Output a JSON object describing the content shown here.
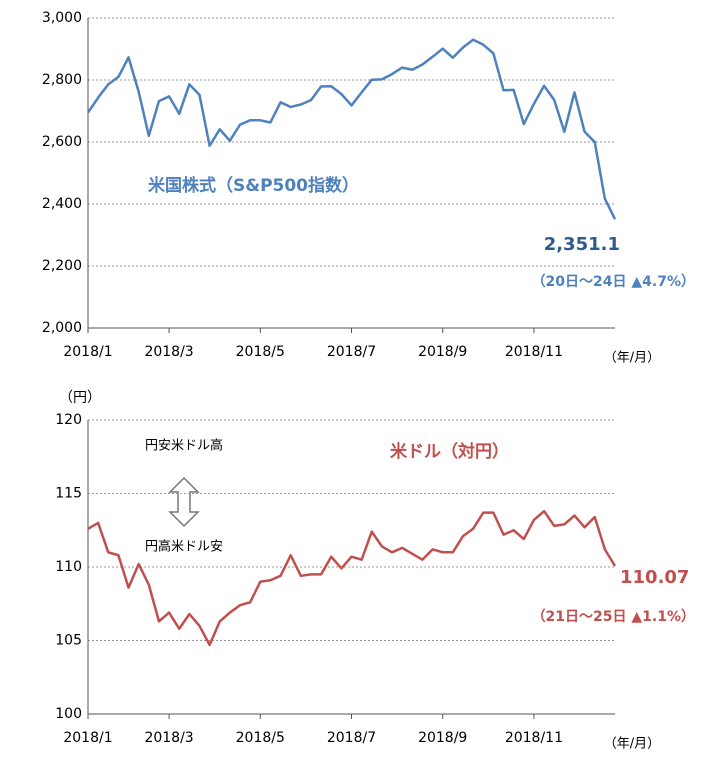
{
  "chart_data": [
    {
      "type": "line",
      "title": "米国株式（S&P500指数）",
      "categories": [
        "2018/1",
        null,
        null,
        null,
        null,
        null,
        null,
        null,
        "2018/3",
        null,
        null,
        null,
        null,
        null,
        null,
        null,
        null,
        "2018/5",
        null,
        null,
        null,
        null,
        null,
        null,
        null,
        null,
        "2018/7",
        null,
        null,
        null,
        null,
        null,
        null,
        null,
        null,
        "2018/9",
        null,
        null,
        null,
        null,
        null,
        null,
        null,
        null,
        "2018/11",
        null,
        null,
        null,
        null,
        null,
        null,
        null,
        null
      ],
      "series": [
        {
          "name": "S&P500",
          "color": "#4f81bd",
          "values": [
            2695,
            2743,
            2786,
            2810,
            2873,
            2762,
            2620,
            2732,
            2747,
            2691,
            2786,
            2752,
            2588,
            2641,
            2604,
            2656,
            2670,
            2670,
            2663,
            2728,
            2713,
            2721,
            2735,
            2779,
            2780,
            2755,
            2718,
            2760,
            2801,
            2802,
            2819,
            2840,
            2833,
            2850,
            2875,
            2901,
            2872,
            2905,
            2930,
            2914,
            2886,
            2767,
            2768,
            2658,
            2723,
            2781,
            2736,
            2633,
            2760,
            2633,
            2600,
            2417,
            2351.1
          ]
        }
      ],
      "ylim": [
        2000,
        3000
      ],
      "yticks": [
        {
          "value": 2000,
          "label": "2,000"
        },
        {
          "value": 2200,
          "label": "2,200"
        },
        {
          "value": 2400,
          "label": "2,400"
        },
        {
          "value": 2600,
          "label": "2,600"
        },
        {
          "value": 2800,
          "label": "2,800"
        },
        {
          "value": 3000,
          "label": "3,000"
        }
      ],
      "grid": true,
      "x_unit": "（年/月）",
      "annotations": [
        "2,351.1",
        "（20日～24日 ▲4.7%）"
      ]
    },
    {
      "type": "line",
      "title": "米ドル（対円）",
      "y_unit": "（円）",
      "categories": [
        "2018/1",
        null,
        null,
        null,
        null,
        null,
        null,
        null,
        "2018/3",
        null,
        null,
        null,
        null,
        null,
        null,
        null,
        null,
        "2018/5",
        null,
        null,
        null,
        null,
        null,
        null,
        null,
        null,
        "2018/7",
        null,
        null,
        null,
        null,
        null,
        null,
        null,
        null,
        "2018/9",
        null,
        null,
        null,
        null,
        null,
        null,
        null,
        null,
        "2018/11",
        null,
        null,
        null,
        null,
        null,
        null,
        null,
        null
      ],
      "series": [
        {
          "name": "USD/JPY",
          "color": "#c0504d",
          "values": [
            112.6,
            113.0,
            111.0,
            110.8,
            108.6,
            110.2,
            108.8,
            106.3,
            106.9,
            105.8,
            106.8,
            106.0,
            104.7,
            106.3,
            106.9,
            107.4,
            107.6,
            109.0,
            109.1,
            109.4,
            110.8,
            109.4,
            109.5,
            109.5,
            110.7,
            109.9,
            110.7,
            110.5,
            112.4,
            111.4,
            111.0,
            111.3,
            110.9,
            110.5,
            111.2,
            111.0,
            111.0,
            112.1,
            112.6,
            113.7,
            113.7,
            112.2,
            112.5,
            111.9,
            113.2,
            113.8,
            112.8,
            112.9,
            113.5,
            112.7,
            113.4,
            111.2,
            110.07
          ]
        }
      ],
      "ylim": [
        100,
        120
      ],
      "yticks": [
        100,
        105,
        110,
        115,
        120
      ],
      "grid": true,
      "x_unit": "（年/月）",
      "annotations": [
        "110.07",
        "（21日～25日 ▲1.1%）",
        "円安米ドル高",
        "円高米ドル安"
      ]
    }
  ]
}
